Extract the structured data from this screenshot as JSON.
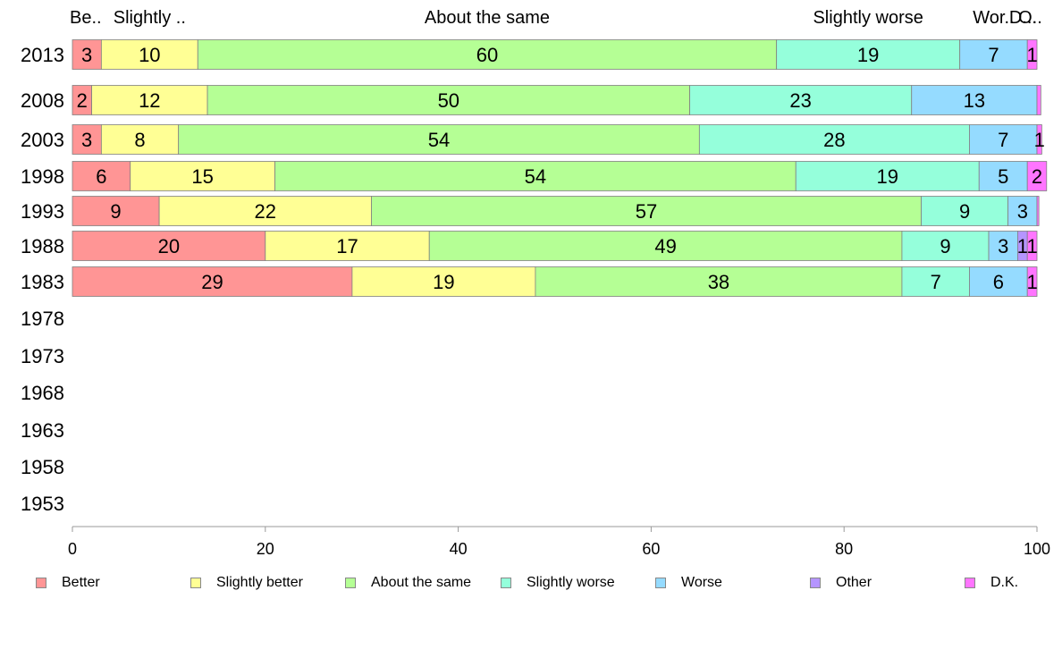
{
  "chart_data": {
    "type": "bar",
    "orientation": "horizontal",
    "stacked": true,
    "categories": [
      "2013",
      "2008",
      "2003",
      "1998",
      "1993",
      "1988",
      "1983",
      "1978",
      "1973",
      "1968",
      "1963",
      "1958",
      "1953"
    ],
    "series": [
      {
        "name": "Better",
        "color": "#ff9595",
        "values": [
          3,
          2,
          3,
          6,
          9,
          20,
          29,
          null,
          null,
          null,
          null,
          null,
          null
        ]
      },
      {
        "name": "Slightly better",
        "color": "#ffff95",
        "values": [
          10,
          12,
          8,
          15,
          22,
          17,
          19,
          null,
          null,
          null,
          null,
          null,
          null
        ]
      },
      {
        "name": "About the same",
        "color": "#b5ff95",
        "values": [
          60,
          50,
          54,
          54,
          57,
          49,
          38,
          null,
          null,
          null,
          null,
          null,
          null
        ]
      },
      {
        "name": "Slightly worse",
        "color": "#95ffdb",
        "values": [
          19,
          23,
          28,
          19,
          9,
          9,
          7,
          null,
          null,
          null,
          null,
          null,
          null
        ]
      },
      {
        "name": "Worse",
        "color": "#95dbff",
        "values": [
          7,
          13,
          7,
          5,
          3,
          3,
          6,
          null,
          null,
          null,
          null,
          null,
          null
        ]
      },
      {
        "name": "Other",
        "color": "#b595ff",
        "values": [
          0,
          0,
          0,
          0,
          0,
          1,
          0,
          null,
          null,
          null,
          null,
          null,
          null
        ]
      },
      {
        "name": "D.K.",
        "color": "#ff75ff",
        "values": [
          1,
          0.4,
          0.5,
          2,
          0.2,
          1,
          1,
          null,
          null,
          null,
          null,
          null,
          null
        ]
      }
    ],
    "segment_labels": [
      [
        "3",
        "10",
        "60",
        "19",
        "7",
        "",
        "1"
      ],
      [
        "2",
        "12",
        "50",
        "23",
        "13",
        "",
        ""
      ],
      [
        "3",
        "8",
        "54",
        "28",
        "7",
        "",
        "1"
      ],
      [
        "6",
        "15",
        "54",
        "19",
        "5",
        "",
        "2"
      ],
      [
        "9",
        "22",
        "57",
        "9",
        "3",
        "",
        ""
      ],
      [
        "20",
        "17",
        "49",
        "9",
        "3",
        "1",
        "1"
      ],
      [
        "29",
        "19",
        "38",
        "7",
        "6",
        "",
        "1"
      ]
    ],
    "top_labels": [
      "Be..",
      "Slightly ..",
      "About the same",
      "Slightly worse",
      "Wor..",
      "O..",
      "D..."
    ],
    "xticks": [
      "0",
      "20",
      "40",
      "60",
      "80",
      "100"
    ],
    "xlim": [
      0,
      100
    ],
    "title": "",
    "xlabel": "",
    "ylabel": "",
    "grid": false,
    "legend_position": "bottom"
  }
}
